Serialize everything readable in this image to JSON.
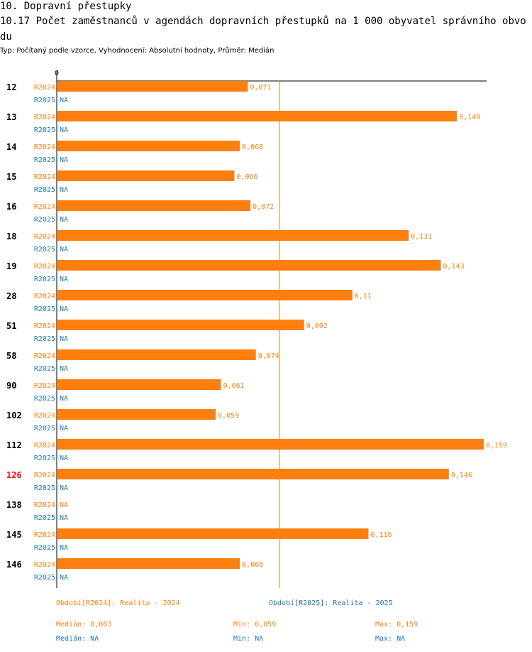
{
  "section_title": "10. Dopravní přestupky",
  "chart_title": "10.17 Počet zaměstnanců v agendách dopravních přestupků na 1 000 obyvatel správního obvodu",
  "subtitle": "Typ: Počítaný podle vzorce, Vyhodnocení: Absolutní hodnoty, Průměr: Medián",
  "colors": {
    "r2024": "#ff7f0e",
    "r2025": "#1f77b4",
    "highlight": "#ff0000",
    "label": "#000000"
  },
  "chart_data": {
    "type": "bar",
    "orientation": "horizontal",
    "axis_zero_label": "0",
    "xlim": [
      0,
      0.159
    ],
    "median_line": 0.083,
    "highlight_category": "126",
    "categories": [
      "12",
      "13",
      "14",
      "15",
      "16",
      "18",
      "19",
      "28",
      "51",
      "58",
      "90",
      "102",
      "112",
      "126",
      "138",
      "145",
      "146"
    ],
    "series": [
      {
        "name": "R2024",
        "values": [
          0.071,
          0.149,
          0.068,
          0.066,
          0.072,
          0.131,
          0.143,
          0.11,
          0.092,
          0.074,
          0.061,
          0.059,
          0.159,
          0.146,
          null,
          0.116,
          0.068
        ]
      },
      {
        "name": "R2025",
        "values": [
          null,
          null,
          null,
          null,
          null,
          null,
          null,
          null,
          null,
          null,
          null,
          null,
          null,
          null,
          null,
          null,
          null
        ]
      }
    ],
    "na_label": "NA"
  },
  "legend": {
    "r2024": "Období[R2024]: Realita - 2024",
    "r2025": "Období[R2025]: Realita - 2025"
  },
  "stats": {
    "r2024": {
      "median": "Medián: 0,083",
      "min": "Min: 0,059",
      "max": "Max: 0,159"
    },
    "r2025": {
      "median": "Medián: NA",
      "min": "Min: NA",
      "max": "Max: NA"
    }
  }
}
